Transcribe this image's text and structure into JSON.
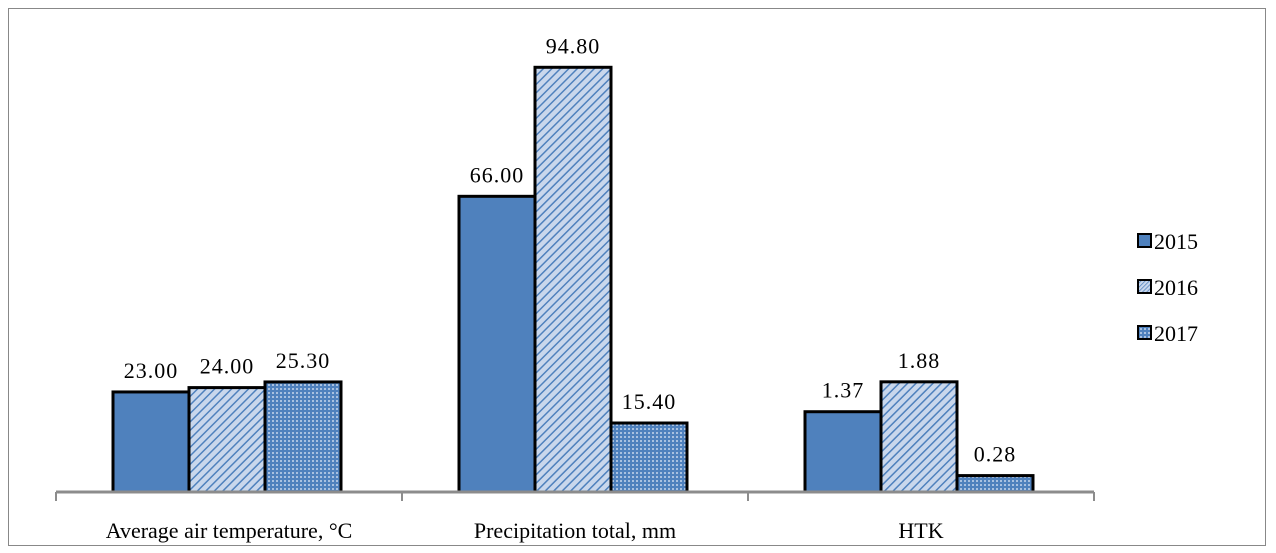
{
  "chart_data": {
    "type": "bar",
    "categories": [
      "Average air temperature, °C",
      "Precipitation total, mm",
      "HTK"
    ],
    "series": [
      {
        "name": "2015",
        "values": [
          23.0,
          66.0,
          1.37
        ],
        "labels": [
          "23.00",
          "66.00",
          "1.37"
        ],
        "color": "#4f81bd",
        "pattern": "solid"
      },
      {
        "name": "2016",
        "values": [
          24.0,
          94.8,
          1.88
        ],
        "labels": [
          "24.00",
          "94.80",
          "1.88"
        ],
        "color": "#4f81bd",
        "pattern": "diagonal"
      },
      {
        "name": "2017",
        "values": [
          25.3,
          15.4,
          0.28
        ],
        "labels": [
          "25.30",
          "15.40",
          "0.28"
        ],
        "color": "#4f81bd",
        "pattern": "dotted"
      }
    ],
    "legend": "right",
    "grid": false,
    "note": "Each category has its own scale in the original chart"
  }
}
